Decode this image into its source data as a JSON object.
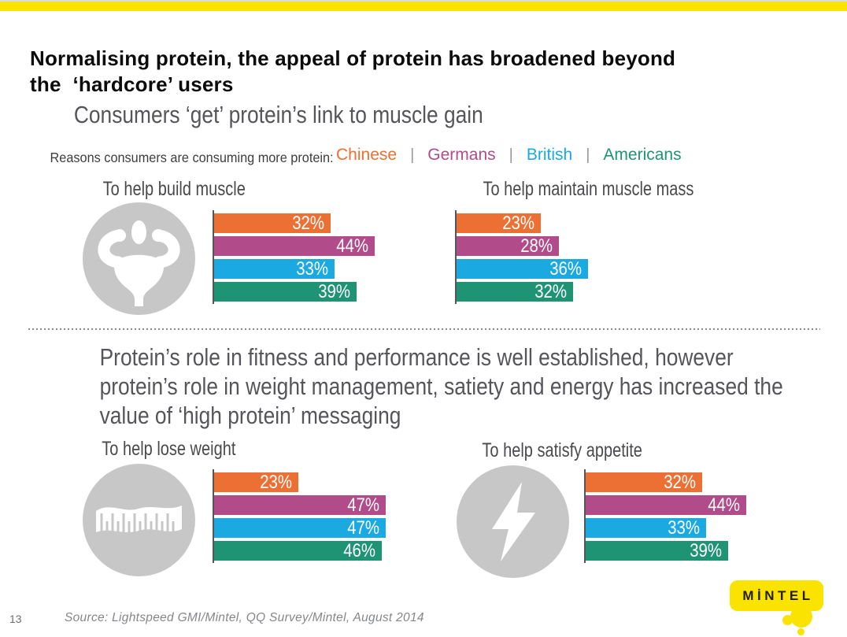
{
  "page": {
    "title": "Normalising protein, the appeal of protein has broadened beyond\nthe  ‘hardcore’ users",
    "page_number": "13",
    "source": "Source: Lightspeed GMI/Mintel, QQ Survey/Mintel, August 2014",
    "logo_text": "MİNTEL"
  },
  "colors": {
    "accent_yellow": "#fbe300",
    "chinese_orange": "#ec7033",
    "germans_magenta": "#b24b89",
    "british_blue": "#1ba9e1",
    "americans_green": "#1f9475",
    "icon_gray": "#c7c7c7",
    "axis_gray": "#55565a"
  },
  "sections": {
    "top": {
      "heading": "Consumers ‘get’ protein’s link to muscle gain",
      "legend_intro": "Reasons consumers are consuming more protein:",
      "legend": [
        {
          "label": "Chinese",
          "color": "#ec7033"
        },
        {
          "label": "Germans",
          "color": "#b24b89"
        },
        {
          "label": "British",
          "color": "#1ba9e1"
        },
        {
          "label": "Americans",
          "color": "#1f9475"
        }
      ]
    },
    "bottom": {
      "heading": "Protein’s role in fitness and performance is well established, however\nprotein’s role in weight management, satiety and energy has increased the\nvalue of ‘high protein’ messaging"
    }
  },
  "chart_data": [
    {
      "type": "bar",
      "title": "To help build muscle",
      "icon": "muscle-icon",
      "categories": [
        "Chinese",
        "Germans",
        "British",
        "Americans"
      ],
      "values": [
        32,
        44,
        33,
        39
      ],
      "value_suffix": "%",
      "xlim": [
        0,
        50
      ],
      "labels_inside_bars": true
    },
    {
      "type": "bar",
      "title": "To help maintain muscle mass",
      "icon": null,
      "categories": [
        "Chinese",
        "Germans",
        "British",
        "Americans"
      ],
      "values": [
        23,
        28,
        36,
        32
      ],
      "value_suffix": "%",
      "xlim": [
        0,
        50
      ],
      "labels_inside_bars": true
    },
    {
      "type": "bar",
      "title": "To help lose weight",
      "icon": "tape-measure-icon",
      "categories": [
        "Chinese",
        "Germans",
        "British",
        "Americans"
      ],
      "values": [
        23,
        47,
        47,
        46
      ],
      "value_suffix": "%",
      "xlim": [
        0,
        50
      ],
      "labels_inside_bars": true
    },
    {
      "type": "bar",
      "title": "To help satisfy appetite",
      "icon": "lightning-icon",
      "categories": [
        "Chinese",
        "Germans",
        "British",
        "Americans"
      ],
      "values": [
        32,
        44,
        33,
        39
      ],
      "value_suffix": "%",
      "xlim": [
        0,
        50
      ],
      "labels_inside_bars": true
    }
  ]
}
